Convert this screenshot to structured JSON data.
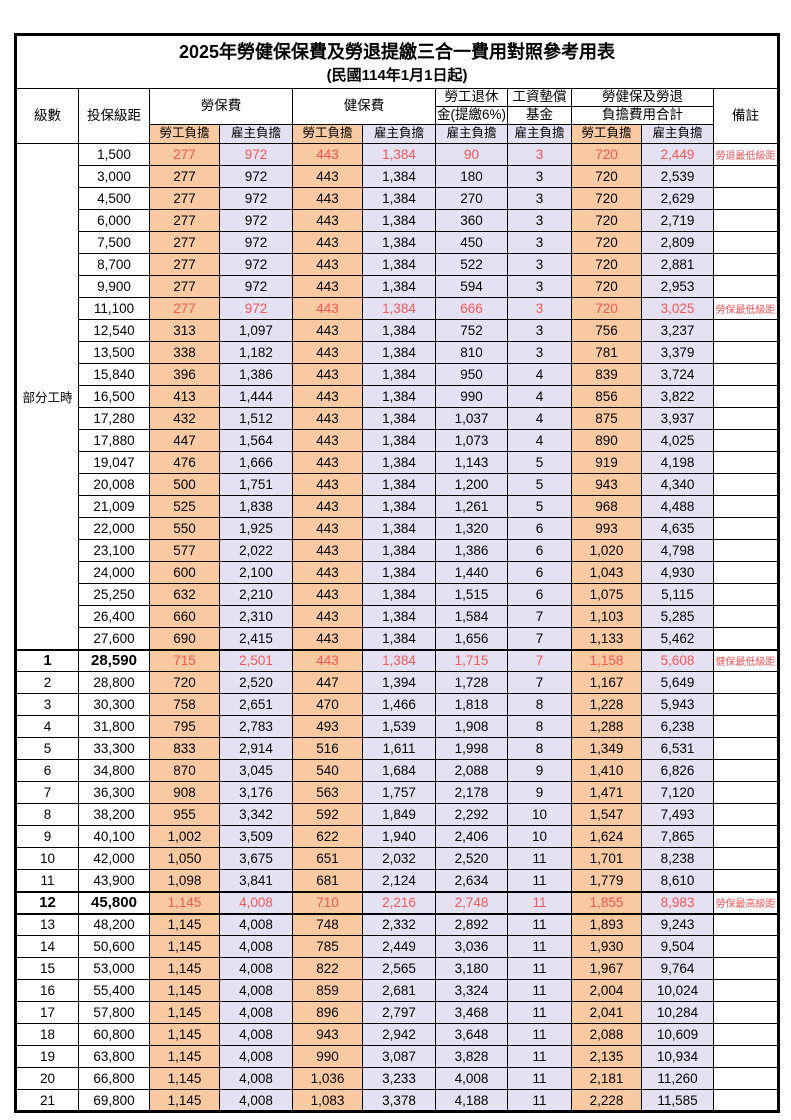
{
  "title": "2025年勞健保保費及勞退提繳三合一費用對照參考用表",
  "subtitle": "(民國114年1月1日起)",
  "colors": {
    "employee_bg": "#F9CAA2",
    "employer_bg": "#E3E1F2",
    "highlight_red": "#FB5656",
    "border": "#000000"
  },
  "header": {
    "level": "級數",
    "bracket": "投保級距",
    "labor_ins": "勞保費",
    "health_ins": "健保費",
    "pension_line1": "勞工退休",
    "pension_line2": "金(提繳6%)",
    "wage_fund_line1": "工資墊償",
    "wage_fund_line2": "基金",
    "total_line1": "勞健保及勞退",
    "total_line2": "負擔費用合計",
    "remark": "備註",
    "employee": "勞工負擔",
    "employer": "雇主負擔"
  },
  "part_time_label": "部分工時",
  "rows": [
    {
      "level": "",
      "bracket": "1,500",
      "li_emp": "277",
      "li_er": "972",
      "hi_emp": "443",
      "hi_er": "1,384",
      "pension": "90",
      "fund": "3",
      "tot_emp": "720",
      "tot_er": "2,449",
      "remark": "勞退最低級距",
      "highlight": true
    },
    {
      "level": "",
      "bracket": "3,000",
      "li_emp": "277",
      "li_er": "972",
      "hi_emp": "443",
      "hi_er": "1,384",
      "pension": "180",
      "fund": "3",
      "tot_emp": "720",
      "tot_er": "2,539",
      "remark": "",
      "highlight": false
    },
    {
      "level": "",
      "bracket": "4,500",
      "li_emp": "277",
      "li_er": "972",
      "hi_emp": "443",
      "hi_er": "1,384",
      "pension": "270",
      "fund": "3",
      "tot_emp": "720",
      "tot_er": "2,629",
      "remark": "",
      "highlight": false
    },
    {
      "level": "",
      "bracket": "6,000",
      "li_emp": "277",
      "li_er": "972",
      "hi_emp": "443",
      "hi_er": "1,384",
      "pension": "360",
      "fund": "3",
      "tot_emp": "720",
      "tot_er": "2,719",
      "remark": "",
      "highlight": false
    },
    {
      "level": "",
      "bracket": "7,500",
      "li_emp": "277",
      "li_er": "972",
      "hi_emp": "443",
      "hi_er": "1,384",
      "pension": "450",
      "fund": "3",
      "tot_emp": "720",
      "tot_er": "2,809",
      "remark": "",
      "highlight": false
    },
    {
      "level": "",
      "bracket": "8,700",
      "li_emp": "277",
      "li_er": "972",
      "hi_emp": "443",
      "hi_er": "1,384",
      "pension": "522",
      "fund": "3",
      "tot_emp": "720",
      "tot_er": "2,881",
      "remark": "",
      "highlight": false
    },
    {
      "level": "",
      "bracket": "9,900",
      "li_emp": "277",
      "li_er": "972",
      "hi_emp": "443",
      "hi_er": "1,384",
      "pension": "594",
      "fund": "3",
      "tot_emp": "720",
      "tot_er": "2,953",
      "remark": "",
      "highlight": false
    },
    {
      "level": "",
      "bracket": "11,100",
      "li_emp": "277",
      "li_er": "972",
      "hi_emp": "443",
      "hi_er": "1,384",
      "pension": "666",
      "fund": "3",
      "tot_emp": "720",
      "tot_er": "3,025",
      "remark": "勞保最低級距",
      "highlight": true
    },
    {
      "level": "",
      "bracket": "12,540",
      "li_emp": "313",
      "li_er": "1,097",
      "hi_emp": "443",
      "hi_er": "1,384",
      "pension": "752",
      "fund": "3",
      "tot_emp": "756",
      "tot_er": "3,237",
      "remark": "",
      "highlight": false
    },
    {
      "level": "",
      "bracket": "13,500",
      "li_emp": "338",
      "li_er": "1,182",
      "hi_emp": "443",
      "hi_er": "1,384",
      "pension": "810",
      "fund": "3",
      "tot_emp": "781",
      "tot_er": "3,379",
      "remark": "",
      "highlight": false
    },
    {
      "level": "",
      "bracket": "15,840",
      "li_emp": "396",
      "li_er": "1,386",
      "hi_emp": "443",
      "hi_er": "1,384",
      "pension": "950",
      "fund": "4",
      "tot_emp": "839",
      "tot_er": "3,724",
      "remark": "",
      "highlight": false
    },
    {
      "level": "",
      "bracket": "16,500",
      "li_emp": "413",
      "li_er": "1,444",
      "hi_emp": "443",
      "hi_er": "1,384",
      "pension": "990",
      "fund": "4",
      "tot_emp": "856",
      "tot_er": "3,822",
      "remark": "",
      "highlight": false
    },
    {
      "level": "",
      "bracket": "17,280",
      "li_emp": "432",
      "li_er": "1,512",
      "hi_emp": "443",
      "hi_er": "1,384",
      "pension": "1,037",
      "fund": "4",
      "tot_emp": "875",
      "tot_er": "3,937",
      "remark": "",
      "highlight": false
    },
    {
      "level": "",
      "bracket": "17,880",
      "li_emp": "447",
      "li_er": "1,564",
      "hi_emp": "443",
      "hi_er": "1,384",
      "pension": "1,073",
      "fund": "4",
      "tot_emp": "890",
      "tot_er": "4,025",
      "remark": "",
      "highlight": false
    },
    {
      "level": "",
      "bracket": "19,047",
      "li_emp": "476",
      "li_er": "1,666",
      "hi_emp": "443",
      "hi_er": "1,384",
      "pension": "1,143",
      "fund": "5",
      "tot_emp": "919",
      "tot_er": "4,198",
      "remark": "",
      "highlight": false
    },
    {
      "level": "",
      "bracket": "20,008",
      "li_emp": "500",
      "li_er": "1,751",
      "hi_emp": "443",
      "hi_er": "1,384",
      "pension": "1,200",
      "fund": "5",
      "tot_emp": "943",
      "tot_er": "4,340",
      "remark": "",
      "highlight": false
    },
    {
      "level": "",
      "bracket": "21,009",
      "li_emp": "525",
      "li_er": "1,838",
      "hi_emp": "443",
      "hi_er": "1,384",
      "pension": "1,261",
      "fund": "5",
      "tot_emp": "968",
      "tot_er": "4,488",
      "remark": "",
      "highlight": false
    },
    {
      "level": "",
      "bracket": "22,000",
      "li_emp": "550",
      "li_er": "1,925",
      "hi_emp": "443",
      "hi_er": "1,384",
      "pension": "1,320",
      "fund": "6",
      "tot_emp": "993",
      "tot_er": "4,635",
      "remark": "",
      "highlight": false
    },
    {
      "level": "",
      "bracket": "23,100",
      "li_emp": "577",
      "li_er": "2,022",
      "hi_emp": "443",
      "hi_er": "1,384",
      "pension": "1,386",
      "fund": "6",
      "tot_emp": "1,020",
      "tot_er": "4,798",
      "remark": "",
      "highlight": false
    },
    {
      "level": "",
      "bracket": "24,000",
      "li_emp": "600",
      "li_er": "2,100",
      "hi_emp": "443",
      "hi_er": "1,384",
      "pension": "1,440",
      "fund": "6",
      "tot_emp": "1,043",
      "tot_er": "4,930",
      "remark": "",
      "highlight": false
    },
    {
      "level": "",
      "bracket": "25,250",
      "li_emp": "632",
      "li_er": "2,210",
      "hi_emp": "443",
      "hi_er": "1,384",
      "pension": "1,515",
      "fund": "6",
      "tot_emp": "1,075",
      "tot_er": "5,115",
      "remark": "",
      "highlight": false
    },
    {
      "level": "",
      "bracket": "26,400",
      "li_emp": "660",
      "li_er": "2,310",
      "hi_emp": "443",
      "hi_er": "1,384",
      "pension": "1,584",
      "fund": "7",
      "tot_emp": "1,103",
      "tot_er": "5,285",
      "remark": "",
      "highlight": false
    },
    {
      "level": "",
      "bracket": "27,600",
      "li_emp": "690",
      "li_er": "2,415",
      "hi_emp": "443",
      "hi_er": "1,384",
      "pension": "1,656",
      "fund": "7",
      "tot_emp": "1,133",
      "tot_er": "5,462",
      "remark": "",
      "highlight": false
    },
    {
      "level": "1",
      "bracket": "28,590",
      "li_emp": "715",
      "li_er": "2,501",
      "hi_emp": "443",
      "hi_er": "1,384",
      "pension": "1,715",
      "fund": "7",
      "tot_emp": "1,158",
      "tot_er": "5,608",
      "remark": "健保最低級距",
      "highlight": true
    },
    {
      "level": "2",
      "bracket": "28,800",
      "li_emp": "720",
      "li_er": "2,520",
      "hi_emp": "447",
      "hi_er": "1,394",
      "pension": "1,728",
      "fund": "7",
      "tot_emp": "1,167",
      "tot_er": "5,649",
      "remark": "",
      "highlight": false
    },
    {
      "level": "3",
      "bracket": "30,300",
      "li_emp": "758",
      "li_er": "2,651",
      "hi_emp": "470",
      "hi_er": "1,466",
      "pension": "1,818",
      "fund": "8",
      "tot_emp": "1,228",
      "tot_er": "5,943",
      "remark": "",
      "highlight": false
    },
    {
      "level": "4",
      "bracket": "31,800",
      "li_emp": "795",
      "li_er": "2,783",
      "hi_emp": "493",
      "hi_er": "1,539",
      "pension": "1,908",
      "fund": "8",
      "tot_emp": "1,288",
      "tot_er": "6,238",
      "remark": "",
      "highlight": false
    },
    {
      "level": "5",
      "bracket": "33,300",
      "li_emp": "833",
      "li_er": "2,914",
      "hi_emp": "516",
      "hi_er": "1,611",
      "pension": "1,998",
      "fund": "8",
      "tot_emp": "1,349",
      "tot_er": "6,531",
      "remark": "",
      "highlight": false
    },
    {
      "level": "6",
      "bracket": "34,800",
      "li_emp": "870",
      "li_er": "3,045",
      "hi_emp": "540",
      "hi_er": "1,684",
      "pension": "2,088",
      "fund": "9",
      "tot_emp": "1,410",
      "tot_er": "6,826",
      "remark": "",
      "highlight": false
    },
    {
      "level": "7",
      "bracket": "36,300",
      "li_emp": "908",
      "li_er": "3,176",
      "hi_emp": "563",
      "hi_er": "1,757",
      "pension": "2,178",
      "fund": "9",
      "tot_emp": "1,471",
      "tot_er": "7,120",
      "remark": "",
      "highlight": false
    },
    {
      "level": "8",
      "bracket": "38,200",
      "li_emp": "955",
      "li_er": "3,342",
      "hi_emp": "592",
      "hi_er": "1,849",
      "pension": "2,292",
      "fund": "10",
      "tot_emp": "1,547",
      "tot_er": "7,493",
      "remark": "",
      "highlight": false
    },
    {
      "level": "9",
      "bracket": "40,100",
      "li_emp": "1,002",
      "li_er": "3,509",
      "hi_emp": "622",
      "hi_er": "1,940",
      "pension": "2,406",
      "fund": "10",
      "tot_emp": "1,624",
      "tot_er": "7,865",
      "remark": "",
      "highlight": false
    },
    {
      "level": "10",
      "bracket": "42,000",
      "li_emp": "1,050",
      "li_er": "3,675",
      "hi_emp": "651",
      "hi_er": "2,032",
      "pension": "2,520",
      "fund": "11",
      "tot_emp": "1,701",
      "tot_er": "8,238",
      "remark": "",
      "highlight": false
    },
    {
      "level": "11",
      "bracket": "43,900",
      "li_emp": "1,098",
      "li_er": "3,841",
      "hi_emp": "681",
      "hi_er": "2,124",
      "pension": "2,634",
      "fund": "11",
      "tot_emp": "1,779",
      "tot_er": "8,610",
      "remark": "",
      "highlight": false
    },
    {
      "level": "12",
      "bracket": "45,800",
      "li_emp": "1,145",
      "li_er": "4,008",
      "hi_emp": "710",
      "hi_er": "2,216",
      "pension": "2,748",
      "fund": "11",
      "tot_emp": "1,855",
      "tot_er": "8,983",
      "remark": "勞保最高級距",
      "highlight": true
    },
    {
      "level": "13",
      "bracket": "48,200",
      "li_emp": "1,145",
      "li_er": "4,008",
      "hi_emp": "748",
      "hi_er": "2,332",
      "pension": "2,892",
      "fund": "11",
      "tot_emp": "1,893",
      "tot_er": "9,243",
      "remark": "",
      "highlight": false
    },
    {
      "level": "14",
      "bracket": "50,600",
      "li_emp": "1,145",
      "li_er": "4,008",
      "hi_emp": "785",
      "hi_er": "2,449",
      "pension": "3,036",
      "fund": "11",
      "tot_emp": "1,930",
      "tot_er": "9,504",
      "remark": "",
      "highlight": false
    },
    {
      "level": "15",
      "bracket": "53,000",
      "li_emp": "1,145",
      "li_er": "4,008",
      "hi_emp": "822",
      "hi_er": "2,565",
      "pension": "3,180",
      "fund": "11",
      "tot_emp": "1,967",
      "tot_er": "9,764",
      "remark": "",
      "highlight": false
    },
    {
      "level": "16",
      "bracket": "55,400",
      "li_emp": "1,145",
      "li_er": "4,008",
      "hi_emp": "859",
      "hi_er": "2,681",
      "pension": "3,324",
      "fund": "11",
      "tot_emp": "2,004",
      "tot_er": "10,024",
      "remark": "",
      "highlight": false
    },
    {
      "level": "17",
      "bracket": "57,800",
      "li_emp": "1,145",
      "li_er": "4,008",
      "hi_emp": "896",
      "hi_er": "2,797",
      "pension": "3,468",
      "fund": "11",
      "tot_emp": "2,041",
      "tot_er": "10,284",
      "remark": "",
      "highlight": false
    },
    {
      "level": "18",
      "bracket": "60,800",
      "li_emp": "1,145",
      "li_er": "4,008",
      "hi_emp": "943",
      "hi_er": "2,942",
      "pension": "3,648",
      "fund": "11",
      "tot_emp": "2,088",
      "tot_er": "10,609",
      "remark": "",
      "highlight": false
    },
    {
      "level": "19",
      "bracket": "63,800",
      "li_emp": "1,145",
      "li_er": "4,008",
      "hi_emp": "990",
      "hi_er": "3,087",
      "pension": "3,828",
      "fund": "11",
      "tot_emp": "2,135",
      "tot_er": "10,934",
      "remark": "",
      "highlight": false
    },
    {
      "level": "20",
      "bracket": "66,800",
      "li_emp": "1,145",
      "li_er": "4,008",
      "hi_emp": "1,036",
      "hi_er": "3,233",
      "pension": "4,008",
      "fund": "11",
      "tot_emp": "2,181",
      "tot_er": "11,260",
      "remark": "",
      "highlight": false
    },
    {
      "level": "21",
      "bracket": "69,800",
      "li_emp": "1,145",
      "li_er": "4,008",
      "hi_emp": "1,083",
      "hi_er": "3,378",
      "pension": "4,188",
      "fund": "11",
      "tot_emp": "2,228",
      "tot_er": "11,585",
      "remark": "",
      "highlight": false
    }
  ]
}
